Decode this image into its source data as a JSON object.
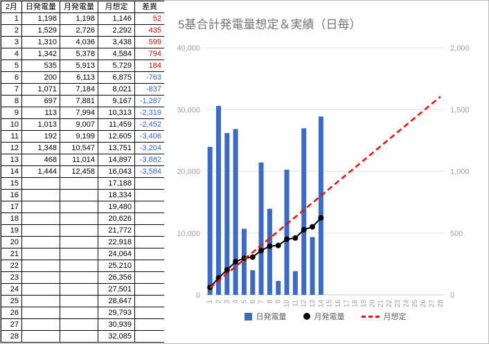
{
  "table": {
    "headers": [
      "2月",
      "日発電量",
      "月発電量",
      "月想定",
      "差異"
    ],
    "rows": [
      [
        "1",
        "1,198",
        "1,198",
        "1,146",
        "52"
      ],
      [
        "2",
        "1,529",
        "2,726",
        "2,292",
        "435"
      ],
      [
        "3",
        "1,310",
        "4,036",
        "3,438",
        "599"
      ],
      [
        "4",
        "1,342",
        "5,378",
        "4,584",
        "794"
      ],
      [
        "5",
        "535",
        "5,913",
        "5,729",
        "184"
      ],
      [
        "6",
        "200",
        "6,113",
        "6,875",
        "-763"
      ],
      [
        "7",
        "1,071",
        "7,184",
        "8,021",
        "-837"
      ],
      [
        "8",
        "697",
        "7,881",
        "9,167",
        "-1,287"
      ],
      [
        "9",
        "113",
        "7,994",
        "10,313",
        "-2,319"
      ],
      [
        "10",
        "1,013",
        "9,007",
        "11,459",
        "-2,452"
      ],
      [
        "11",
        "192",
        "9,199",
        "12,605",
        "-3,406"
      ],
      [
        "12",
        "1,348",
        "10,547",
        "13,751",
        "-3,204"
      ],
      [
        "13",
        "468",
        "11,014",
        "14,897",
        "-3,882"
      ],
      [
        "14",
        "1,444",
        "12,458",
        "16,043",
        "-3,584"
      ],
      [
        "15",
        "",
        "",
        "17,188",
        ""
      ],
      [
        "16",
        "",
        "",
        "18,334",
        ""
      ],
      [
        "17",
        "",
        "",
        "19,480",
        ""
      ],
      [
        "18",
        "",
        "",
        "20,626",
        ""
      ],
      [
        "19",
        "",
        "",
        "21,772",
        ""
      ],
      [
        "20",
        "",
        "",
        "22,918",
        ""
      ],
      [
        "21",
        "",
        "",
        "24,064",
        ""
      ],
      [
        "22",
        "",
        "",
        "25,210",
        ""
      ],
      [
        "23",
        "",
        "",
        "26,356",
        ""
      ],
      [
        "24",
        "",
        "",
        "27,501",
        ""
      ],
      [
        "25",
        "",
        "",
        "28,647",
        ""
      ],
      [
        "26",
        "",
        "",
        "29,793",
        ""
      ],
      [
        "27",
        "",
        "",
        "30,939",
        ""
      ],
      [
        "28",
        "",
        "",
        "32,085",
        ""
      ]
    ]
  },
  "chart_data": {
    "type": "combo",
    "title": "5基合計発電量想定＆実績（日毎）",
    "x": [
      1,
      2,
      3,
      4,
      5,
      6,
      7,
      8,
      9,
      10,
      11,
      12,
      13,
      14,
      15,
      16,
      17,
      18,
      19,
      20,
      21,
      22,
      23,
      24,
      25,
      26,
      27,
      28
    ],
    "series": [
      {
        "name": "日発電量",
        "type": "bar",
        "axis": "right",
        "color": "#3c6bc5",
        "values": [
          1198,
          1529,
          1310,
          1342,
          535,
          200,
          1071,
          697,
          113,
          1013,
          192,
          1348,
          468,
          1444
        ]
      },
      {
        "name": "月発電量",
        "type": "scatter",
        "axis": "left",
        "color": "#000000",
        "values": [
          1198,
          2726,
          4036,
          5378,
          5913,
          6113,
          7184,
          7881,
          7994,
          9007,
          9199,
          10547,
          11014,
          12458
        ]
      },
      {
        "name": "月想定",
        "type": "dashed-line",
        "axis": "left",
        "color": "#ff0000",
        "values": [
          1146,
          2292,
          3438,
          4584,
          5729,
          6875,
          8021,
          9167,
          10313,
          11459,
          12605,
          13751,
          14897,
          16043,
          17188,
          18334,
          19480,
          20626,
          21772,
          22918,
          24064,
          25210,
          26356,
          27501,
          28647,
          29793,
          30939,
          32085
        ]
      }
    ],
    "left_axis": {
      "min": 0,
      "max": 40000,
      "ticks": [
        {
          "v": 0,
          "label": "0"
        },
        {
          "v": 10000,
          "label": "10,000"
        },
        {
          "v": 20000,
          "label": "20,000"
        },
        {
          "v": 30000,
          "label": "30,000"
        },
        {
          "v": 40000,
          "label": "40,000"
        }
      ]
    },
    "right_axis": {
      "min": 0,
      "max": 2000,
      "ticks": [
        {
          "v": 0,
          "label": "0"
        },
        {
          "v": 500,
          "label": "500"
        },
        {
          "v": 1000,
          "label": "1,000"
        },
        {
          "v": 1500,
          "label": "1,500"
        },
        {
          "v": 2000,
          "label": "2,000"
        }
      ]
    },
    "legend": [
      "日発電量",
      "月発電量",
      "月想定"
    ],
    "grid": true,
    "legend_position": "bottom"
  },
  "colors": {
    "bar_blue": "#3c6bc5",
    "forecast_red": "#ff0000",
    "monthly_black": "#000000",
    "diff_positive": "#ff0000",
    "diff_negative": "#3366cc",
    "title_gray": "#757575",
    "axis_text_gray": "#9e9e9e",
    "gridline": "#e3e3e3",
    "baseline": "#c9c9c9"
  }
}
